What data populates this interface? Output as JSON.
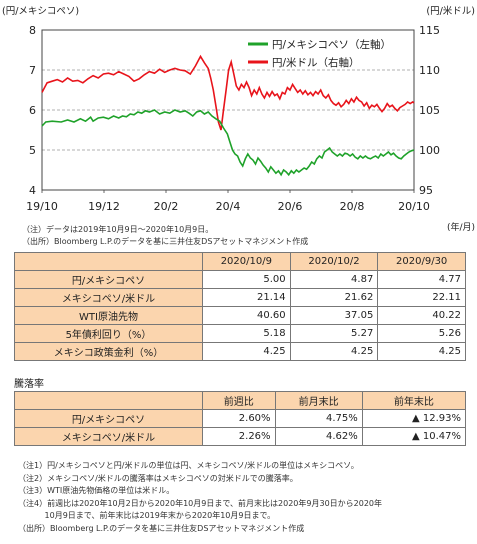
{
  "chart_data": {
    "type": "line",
    "left_axis_label": "(円/メキシコペソ)",
    "right_axis_label": "(円/米ドル)",
    "x_unit_label": "(年/月)",
    "x_tick_labels": [
      "19/10",
      "19/12",
      "20/2",
      "20/4",
      "20/6",
      "20/8",
      "20/10"
    ],
    "y_left": {
      "min": 4,
      "max": 8,
      "ticks": [
        4,
        5,
        6,
        7,
        8
      ]
    },
    "y_right": {
      "min": 95,
      "max": 115,
      "ticks": [
        95,
        100,
        105,
        110,
        115
      ]
    },
    "grid": true,
    "legend_position": "top-right",
    "colors": {
      "mxn": "#1fa22a",
      "usd": "#e8141b"
    },
    "series": [
      {
        "name": "円/メキシコペソ（左軸）",
        "axis": "left",
        "points": [
          [
            0,
            5.6
          ],
          [
            0.3,
            5.7
          ],
          [
            0.8,
            5.72
          ],
          [
            1.5,
            5.7
          ],
          [
            2,
            5.75
          ],
          [
            2.5,
            5.7
          ],
          [
            3,
            5.78
          ],
          [
            3.4,
            5.72
          ],
          [
            3.8,
            5.82
          ],
          [
            4.0,
            5.72
          ],
          [
            4.4,
            5.8
          ],
          [
            4.8,
            5.82
          ],
          [
            5.2,
            5.78
          ],
          [
            5.6,
            5.85
          ],
          [
            6.0,
            5.8
          ],
          [
            6.3,
            5.85
          ],
          [
            6.6,
            5.83
          ],
          [
            6.9,
            5.9
          ],
          [
            7.2,
            5.88
          ],
          [
            7.5,
            5.95
          ],
          [
            7.8,
            5.92
          ],
          [
            8.1,
            5.98
          ],
          [
            8.4,
            5.95
          ],
          [
            8.8,
            6.0
          ],
          [
            9.2,
            5.9
          ],
          [
            9.6,
            5.95
          ],
          [
            10.0,
            5.92
          ],
          [
            10.4,
            6.0
          ],
          [
            10.8,
            5.95
          ],
          [
            11.2,
            5.98
          ],
          [
            11.5,
            5.92
          ],
          [
            11.8,
            5.85
          ],
          [
            12.1,
            5.95
          ],
          [
            12.4,
            5.98
          ],
          [
            12.7,
            5.9
          ],
          [
            13.0,
            5.95
          ],
          [
            13.3,
            5.85
          ],
          [
            13.6,
            5.78
          ],
          [
            13.9,
            5.72
          ],
          [
            14.2,
            5.55
          ],
          [
            14.5,
            5.4
          ],
          [
            14.7,
            5.2
          ],
          [
            14.9,
            5.0
          ],
          [
            15.1,
            4.9
          ],
          [
            15.3,
            4.85
          ],
          [
            15.5,
            4.7
          ],
          [
            15.7,
            4.6
          ],
          [
            15.9,
            4.78
          ],
          [
            16.1,
            4.9
          ],
          [
            16.3,
            4.8
          ],
          [
            16.5,
            4.75
          ],
          [
            16.7,
            4.65
          ],
          [
            16.9,
            4.8
          ],
          [
            17.1,
            4.72
          ],
          [
            17.3,
            4.62
          ],
          [
            17.5,
            4.55
          ],
          [
            17.7,
            4.45
          ],
          [
            17.9,
            4.58
          ],
          [
            18.1,
            4.5
          ],
          [
            18.3,
            4.42
          ],
          [
            18.5,
            4.48
          ],
          [
            18.7,
            4.38
          ],
          [
            18.9,
            4.5
          ],
          [
            19.1,
            4.45
          ],
          [
            19.3,
            4.38
          ],
          [
            19.5,
            4.48
          ],
          [
            19.7,
            4.42
          ],
          [
            19.9,
            4.5
          ],
          [
            20.1,
            4.45
          ],
          [
            20.3,
            4.5
          ],
          [
            20.5,
            4.55
          ],
          [
            20.7,
            4.52
          ],
          [
            20.9,
            4.6
          ],
          [
            21.1,
            4.7
          ],
          [
            21.3,
            4.65
          ],
          [
            21.5,
            4.78
          ],
          [
            21.7,
            4.85
          ],
          [
            21.9,
            4.8
          ],
          [
            22.1,
            4.95
          ],
          [
            22.3,
            5.0
          ],
          [
            22.5,
            5.05
          ],
          [
            22.7,
            4.95
          ],
          [
            22.9,
            4.9
          ],
          [
            23.1,
            4.85
          ],
          [
            23.3,
            4.9
          ],
          [
            23.5,
            4.85
          ],
          [
            23.7,
            4.92
          ],
          [
            23.9,
            4.9
          ],
          [
            24.1,
            4.85
          ],
          [
            24.3,
            4.9
          ],
          [
            24.5,
            4.82
          ],
          [
            24.7,
            4.78
          ],
          [
            24.9,
            4.85
          ],
          [
            25.1,
            4.8
          ],
          [
            25.3,
            4.85
          ],
          [
            25.5,
            4.8
          ],
          [
            25.7,
            4.78
          ],
          [
            25.9,
            4.82
          ],
          [
            26.1,
            4.85
          ],
          [
            26.3,
            4.8
          ],
          [
            26.5,
            4.9
          ],
          [
            26.7,
            4.85
          ],
          [
            26.9,
            4.9
          ],
          [
            27.1,
            4.95
          ],
          [
            27.3,
            4.88
          ],
          [
            27.5,
            4.92
          ],
          [
            27.7,
            4.85
          ],
          [
            27.9,
            4.8
          ],
          [
            28.1,
            4.78
          ],
          [
            28.3,
            4.85
          ],
          [
            28.5,
            4.9
          ],
          [
            28.7,
            4.95
          ],
          [
            28.9,
            4.98
          ],
          [
            29.1,
            5.0
          ]
        ]
      },
      {
        "name": "円/米ドル（右軸）",
        "axis": "right",
        "points": [
          [
            0,
            107.2
          ],
          [
            0.4,
            108.4
          ],
          [
            0.8,
            108.6
          ],
          [
            1.2,
            108.8
          ],
          [
            1.6,
            108.5
          ],
          [
            2.0,
            109.0
          ],
          [
            2.4,
            108.6
          ],
          [
            2.8,
            108.7
          ],
          [
            3.2,
            108.4
          ],
          [
            3.6,
            108.9
          ],
          [
            4.0,
            109.3
          ],
          [
            4.4,
            109.0
          ],
          [
            4.8,
            109.5
          ],
          [
            5.2,
            109.6
          ],
          [
            5.6,
            109.4
          ],
          [
            6.0,
            109.8
          ],
          [
            6.4,
            109.5
          ],
          [
            6.8,
            109.2
          ],
          [
            7.2,
            108.6
          ],
          [
            7.6,
            108.9
          ],
          [
            8.0,
            109.4
          ],
          [
            8.4,
            109.8
          ],
          [
            8.8,
            109.6
          ],
          [
            9.2,
            110.1
          ],
          [
            9.6,
            109.7
          ],
          [
            10.0,
            110.0
          ],
          [
            10.4,
            110.2
          ],
          [
            10.8,
            110.0
          ],
          [
            11.2,
            109.9
          ],
          [
            11.6,
            109.5
          ],
          [
            12.0,
            110.5
          ],
          [
            12.4,
            111.7
          ],
          [
            12.7,
            110.9
          ],
          [
            13.0,
            110.2
          ],
          [
            13.2,
            109.0
          ],
          [
            13.4,
            107.5
          ],
          [
            13.6,
            105.5
          ],
          [
            13.8,
            103.5
          ],
          [
            14.0,
            102.5
          ],
          [
            14.2,
            105.0
          ],
          [
            14.4,
            107.5
          ],
          [
            14.6,
            110.0
          ],
          [
            14.8,
            111.0
          ],
          [
            15.0,
            109.5
          ],
          [
            15.2,
            108.0
          ],
          [
            15.4,
            107.5
          ],
          [
            15.6,
            108.2
          ],
          [
            15.8,
            107.8
          ],
          [
            16.0,
            108.5
          ],
          [
            16.2,
            107.8
          ],
          [
            16.4,
            106.8
          ],
          [
            16.6,
            107.5
          ],
          [
            16.8,
            107.0
          ],
          [
            17.0,
            107.8
          ],
          [
            17.2,
            107.0
          ],
          [
            17.4,
            106.5
          ],
          [
            17.6,
            107.2
          ],
          [
            17.8,
            106.7
          ],
          [
            18.0,
            107.3
          ],
          [
            18.2,
            106.8
          ],
          [
            18.4,
            107.0
          ],
          [
            18.6,
            106.4
          ],
          [
            18.8,
            107.2
          ],
          [
            19.0,
            107.0
          ],
          [
            19.2,
            107.8
          ],
          [
            19.4,
            107.5
          ],
          [
            19.6,
            108.2
          ],
          [
            19.8,
            107.7
          ],
          [
            20.0,
            107.2
          ],
          [
            20.2,
            107.5
          ],
          [
            20.4,
            107.0
          ],
          [
            20.6,
            107.4
          ],
          [
            20.8,
            106.9
          ],
          [
            21.0,
            107.2
          ],
          [
            21.2,
            106.8
          ],
          [
            21.4,
            107.3
          ],
          [
            21.6,
            107.0
          ],
          [
            21.8,
            107.5
          ],
          [
            22.0,
            106.8
          ],
          [
            22.2,
            106.5
          ],
          [
            22.4,
            106.9
          ],
          [
            22.6,
            106.2
          ],
          [
            22.8,
            105.8
          ],
          [
            23.0,
            105.6
          ],
          [
            23.2,
            105.9
          ],
          [
            23.4,
            105.4
          ],
          [
            23.6,
            105.7
          ],
          [
            23.8,
            106.2
          ],
          [
            24.0,
            105.8
          ],
          [
            24.2,
            106.4
          ],
          [
            24.4,
            106.0
          ],
          [
            24.6,
            106.6
          ],
          [
            24.8,
            106.2
          ],
          [
            25.0,
            106.0
          ],
          [
            25.2,
            105.5
          ],
          [
            25.4,
            105.9
          ],
          [
            25.6,
            105.2
          ],
          [
            25.8,
            105.6
          ],
          [
            26.0,
            105.4
          ],
          [
            26.2,
            105.7
          ],
          [
            26.4,
            105.2
          ],
          [
            26.6,
            104.8
          ],
          [
            26.8,
            105.2
          ],
          [
            27.0,
            105.8
          ],
          [
            27.2,
            105.4
          ],
          [
            27.4,
            105.6
          ],
          [
            27.6,
            105.2
          ],
          [
            27.8,
            104.9
          ],
          [
            28.0,
            105.3
          ],
          [
            28.2,
            105.5
          ],
          [
            28.4,
            105.7
          ],
          [
            28.6,
            106.0
          ],
          [
            28.8,
            105.8
          ],
          [
            29.0,
            106.0
          ],
          [
            29.1,
            105.9
          ]
        ]
      }
    ],
    "x_range": [
      0,
      29.1
    ]
  },
  "chart_notes": [
    "（注）データは2019年10月9日～2020年10月9日。",
    "（出所）Bloomberg L.P.のデータを基に三井住友DSアセットマネジメント作成"
  ],
  "table1": {
    "headers": [
      "",
      "2020/10/9",
      "2020/10/2",
      "2020/9/30"
    ],
    "rows": [
      [
        "円/メキシコペソ",
        "5.00",
        "4.87",
        "4.77"
      ],
      [
        "メキシコペソ/米ドル",
        "21.14",
        "21.62",
        "22.11"
      ],
      [
        "WTI原油先物",
        "40.60",
        "37.05",
        "40.22"
      ],
      [
        "5年債利回り（%）",
        "5.18",
        "5.27",
        "5.26"
      ],
      [
        "メキシコ政策金利（%）",
        "4.25",
        "4.25",
        "4.25"
      ]
    ]
  },
  "table2_title": "騰落率",
  "table2": {
    "headers": [
      "",
      "前週比",
      "前月末比",
      "前年末比"
    ],
    "rows": [
      [
        "円/メキシコペソ",
        "2.60%",
        "4.75%",
        "▲ 12.93%"
      ],
      [
        "メキシコペソ/米ドル",
        "2.26%",
        "4.62%",
        "▲ 10.47%"
      ]
    ]
  },
  "footnotes": [
    "（注1）円/メキシコペソと円/米ドルの単位は円、メキシコペソ/米ドルの単位はメキシコペソ。",
    "（注2）メキシコペソ/米ドルの騰落率はメキシコペソの対米ドルでの騰落率。",
    "（注3）WTI原油先物価格の単位は米ドル。",
    "（注4）前週比は2020年10月2日から2020年10月9日まで、前月末比は2020年9月30日から2020年",
    "　　　 10月9日まで、前年末比は2019年末から2020年10月9日まで。",
    "（出所）Bloomberg L.P.のデータを基に三井住友DSアセットマネジメント作成"
  ]
}
